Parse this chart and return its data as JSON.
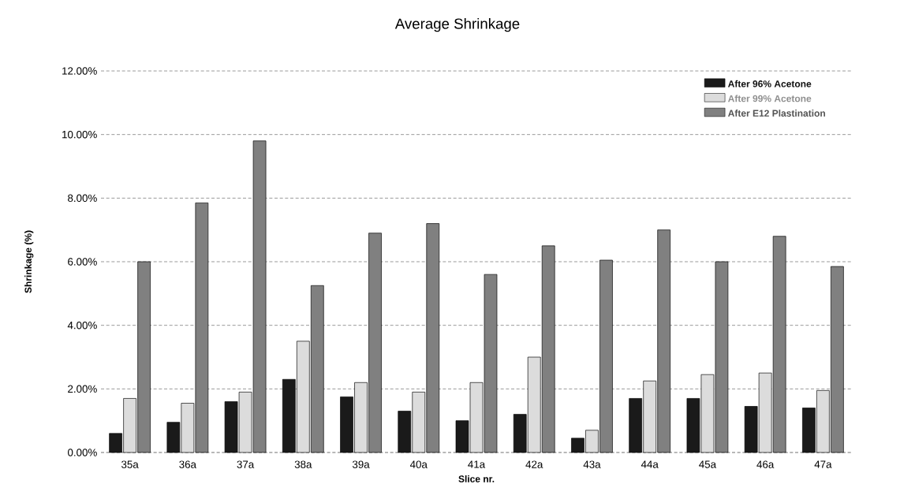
{
  "chart_data": {
    "type": "bar",
    "title": "Average Shrinkage",
    "xlabel": "Slice nr.",
    "ylabel": "Shrinkage (%)",
    "categories": [
      "35a",
      "36a",
      "37a",
      "38a",
      "39a",
      "40a",
      "41a",
      "42a",
      "43a",
      "44a",
      "45a",
      "46a",
      "47a"
    ],
    "series": [
      {
        "name": "After 96% Acetone",
        "color": "#1a1a1a",
        "values": [
          0.6,
          0.95,
          1.6,
          2.3,
          1.75,
          1.3,
          1.0,
          1.2,
          0.45,
          1.7,
          1.7,
          1.45,
          1.4
        ]
      },
      {
        "name": "After 99% Acetone",
        "color": "#dcdcdc",
        "values": [
          1.7,
          1.55,
          1.9,
          3.5,
          2.2,
          1.9,
          2.2,
          3.0,
          0.7,
          2.25,
          2.45,
          2.5,
          1.95
        ]
      },
      {
        "name": "After E12 Plastination",
        "color": "#808080",
        "values": [
          6.0,
          7.85,
          9.8,
          5.25,
          6.9,
          7.2,
          5.6,
          6.5,
          6.05,
          7.0,
          6.0,
          6.8,
          5.85
        ]
      }
    ],
    "ylim": [
      0,
      12
    ],
    "yticks": [
      {
        "value": 0,
        "label": "0.00%"
      },
      {
        "value": 2,
        "label": "2.00%"
      },
      {
        "value": 4,
        "label": "4.00%"
      },
      {
        "value": 6,
        "label": "6.00%"
      },
      {
        "value": 8,
        "label": "8.00%"
      },
      {
        "value": 10,
        "label": "10.00%"
      },
      {
        "value": 12,
        "label": "12.00%"
      }
    ],
    "grid": "y",
    "legend": "top right"
  }
}
